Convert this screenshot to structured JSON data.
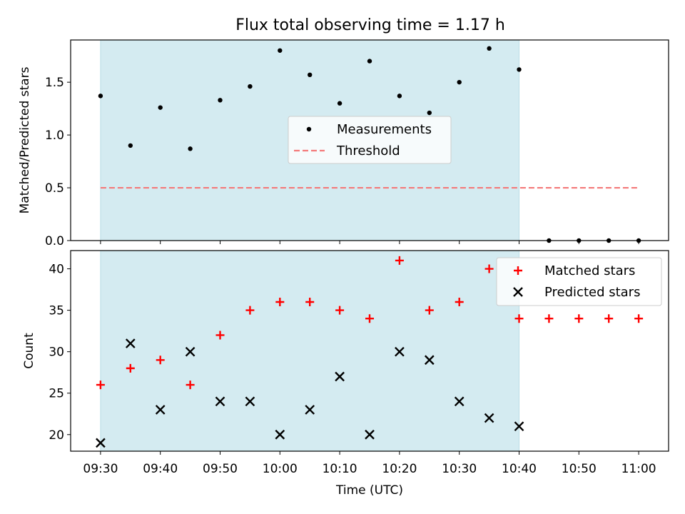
{
  "title": "Flux total observing time = 1.17 h",
  "chart_data": [
    {
      "type": "scatter",
      "ylabel": "Matched/Predicted stars",
      "ylim": [
        0,
        1.9
      ],
      "yticks": [
        0.0,
        0.5,
        1.0,
        1.5
      ],
      "ytick_labels": [
        "0.0",
        "0.5",
        "1.0",
        "1.5"
      ],
      "xlim": [
        "09:25",
        "11:05"
      ],
      "shaded_span": [
        "09:30",
        "10:40"
      ],
      "shade_color": "#d4ebf1",
      "legend_position": "center",
      "series": [
        {
          "name": "Measurements",
          "marker": "dot",
          "color": "#000000",
          "x": [
            "09:30",
            "09:35",
            "09:40",
            "09:45",
            "09:50",
            "09:55",
            "10:00",
            "10:05",
            "10:10",
            "10:15",
            "10:20",
            "10:25",
            "10:30",
            "10:35",
            "10:40",
            "10:45",
            "10:50",
            "10:55",
            "11:00"
          ],
          "y": [
            1.37,
            0.9,
            1.26,
            0.87,
            1.33,
            1.46,
            1.8,
            1.57,
            1.3,
            1.7,
            1.37,
            1.21,
            1.5,
            1.82,
            1.62,
            0.0,
            0.0,
            0.0,
            0.0
          ]
        },
        {
          "name": "Threshold",
          "marker": "dashed-line",
          "color": "#f47a7a",
          "x": [
            "09:30",
            "11:00"
          ],
          "y": [
            0.5,
            0.5
          ]
        }
      ]
    },
    {
      "type": "scatter",
      "xlabel": "Time (UTC)",
      "ylabel": "Count",
      "ylim": [
        18,
        42.2
      ],
      "yticks": [
        20,
        25,
        30,
        35,
        40
      ],
      "ytick_labels": [
        "20",
        "25",
        "30",
        "35",
        "40"
      ],
      "xlim": [
        "09:25",
        "11:05"
      ],
      "xtick_labels": [
        "09:30",
        "09:40",
        "09:50",
        "10:00",
        "10:10",
        "10:20",
        "10:30",
        "10:40",
        "10:50",
        "11:00"
      ],
      "shaded_span": [
        "09:30",
        "10:40"
      ],
      "shade_color": "#d4ebf1",
      "legend_position": "upper right",
      "series": [
        {
          "name": "Matched stars",
          "marker": "plus",
          "color": "#ff0000",
          "x": [
            "09:30",
            "09:35",
            "09:40",
            "09:45",
            "09:50",
            "09:55",
            "10:00",
            "10:05",
            "10:10",
            "10:15",
            "10:20",
            "10:25",
            "10:30",
            "10:35",
            "10:40",
            "10:45",
            "10:50",
            "10:55",
            "11:00"
          ],
          "y": [
            26,
            28,
            29,
            26,
            32,
            35,
            36,
            36,
            35,
            34,
            41,
            35,
            36,
            40,
            34,
            34,
            34,
            34,
            34
          ]
        },
        {
          "name": "Predicted stars",
          "marker": "x",
          "color": "#000000",
          "x": [
            "09:30",
            "09:35",
            "09:40",
            "09:45",
            "09:50",
            "09:55",
            "10:00",
            "10:05",
            "10:10",
            "10:15",
            "10:20",
            "10:25",
            "10:30",
            "10:35",
            "10:40"
          ],
          "y": [
            19,
            31,
            23,
            30,
            24,
            24,
            20,
            23,
            27,
            20,
            30,
            29,
            24,
            22,
            21
          ]
        }
      ]
    }
  ]
}
